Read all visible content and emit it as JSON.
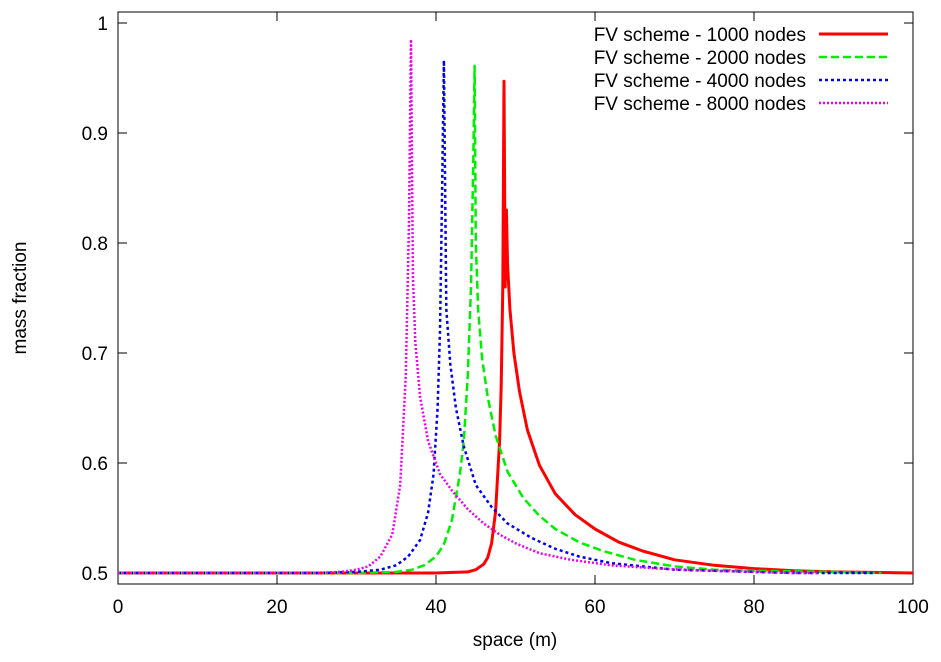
{
  "chart_data": {
    "type": "line",
    "title": "",
    "xlabel": "space (m)",
    "ylabel": "mass fraction",
    "xlim": [
      0,
      100
    ],
    "ylim": [
      0.49,
      1.01
    ],
    "x_ticks": [
      0,
      20,
      40,
      60,
      80,
      100
    ],
    "x_tick_labels": [
      "0",
      "20",
      "40",
      "60",
      "80",
      "100"
    ],
    "y_ticks": [
      0.5,
      0.6,
      0.7,
      0.8,
      0.9,
      1.0
    ],
    "y_tick_labels": [
      "0.5",
      "0.6",
      "0.7",
      "0.8",
      "0.9",
      "1"
    ],
    "grid": false,
    "legend_position": "top-right",
    "series": [
      {
        "name": "FV scheme - 1000 nodes",
        "color": "#ff0000",
        "dash": "solid",
        "x": [
          0,
          10,
          20,
          30,
          40,
          44,
          45,
          46,
          46.5,
          47,
          47.5,
          48,
          48.2,
          48.4,
          48.55,
          48.7,
          48.85,
          49,
          49.3,
          49.8,
          50.5,
          51.5,
          53,
          55,
          57.5,
          60,
          63,
          66,
          70,
          75,
          80,
          85,
          90,
          100
        ],
        "y": [
          0.5,
          0.5,
          0.5,
          0.5,
          0.5,
          0.501,
          0.503,
          0.508,
          0.514,
          0.527,
          0.556,
          0.62,
          0.67,
          0.76,
          0.947,
          0.76,
          0.83,
          0.78,
          0.74,
          0.7,
          0.665,
          0.63,
          0.598,
          0.572,
          0.553,
          0.54,
          0.528,
          0.52,
          0.512,
          0.507,
          0.504,
          0.502,
          0.501,
          0.5
        ]
      },
      {
        "name": "FV scheme - 2000 nodes",
        "color": "#00ee00",
        "dash": "8,4",
        "x": [
          0,
          10,
          20,
          30,
          35,
          37,
          38.5,
          40,
          41,
          42,
          43,
          43.5,
          44,
          44.4,
          44.7,
          44.85,
          45,
          45.3,
          45.8,
          46.5,
          47.5,
          49,
          51,
          53,
          55,
          58,
          61,
          65,
          70,
          75,
          80,
          90,
          96
        ],
        "y": [
          0.5,
          0.5,
          0.5,
          0.5,
          0.501,
          0.503,
          0.507,
          0.515,
          0.526,
          0.548,
          0.59,
          0.62,
          0.68,
          0.76,
          0.88,
          0.961,
          0.8,
          0.74,
          0.695,
          0.66,
          0.625,
          0.592,
          0.568,
          0.552,
          0.54,
          0.528,
          0.52,
          0.512,
          0.506,
          0.503,
          0.502,
          0.501,
          0.5
        ]
      },
      {
        "name": "FV scheme - 4000 nodes",
        "color": "#0000ee",
        "dash": "3,3",
        "x": [
          0,
          10,
          20,
          25,
          30,
          33,
          35,
          36.5,
          38,
          39,
          39.7,
          40.2,
          40.5,
          40.75,
          41,
          41.3,
          41.8,
          42.5,
          43.5,
          45,
          47,
          49,
          52,
          55,
          58,
          62,
          66,
          70,
          75,
          80,
          85,
          95
        ],
        "y": [
          0.5,
          0.5,
          0.5,
          0.5,
          0.501,
          0.503,
          0.507,
          0.515,
          0.53,
          0.555,
          0.59,
          0.65,
          0.72,
          0.84,
          0.966,
          0.74,
          0.69,
          0.65,
          0.615,
          0.58,
          0.56,
          0.545,
          0.532,
          0.522,
          0.515,
          0.509,
          0.506,
          0.503,
          0.502,
          0.501,
          0.5,
          0.5
        ]
      },
      {
        "name": "FV scheme - 8000 nodes",
        "color": "#ee00ee",
        "dash": "2,2",
        "x": [
          0,
          10,
          20,
          25,
          28,
          30,
          31.5,
          33,
          34.5,
          35.5,
          36.2,
          36.6,
          36.85,
          37.1,
          37.4,
          38,
          39,
          40.5,
          42,
          44,
          46,
          48,
          50,
          53,
          57,
          62,
          68,
          75,
          80,
          85,
          88
        ],
        "y": [
          0.5,
          0.5,
          0.5,
          0.5,
          0.501,
          0.503,
          0.506,
          0.515,
          0.535,
          0.58,
          0.68,
          0.82,
          0.985,
          0.77,
          0.71,
          0.66,
          0.62,
          0.59,
          0.575,
          0.558,
          0.545,
          0.535,
          0.527,
          0.518,
          0.512,
          0.507,
          0.504,
          0.502,
          0.501,
          0.5,
          0.5
        ]
      }
    ]
  }
}
